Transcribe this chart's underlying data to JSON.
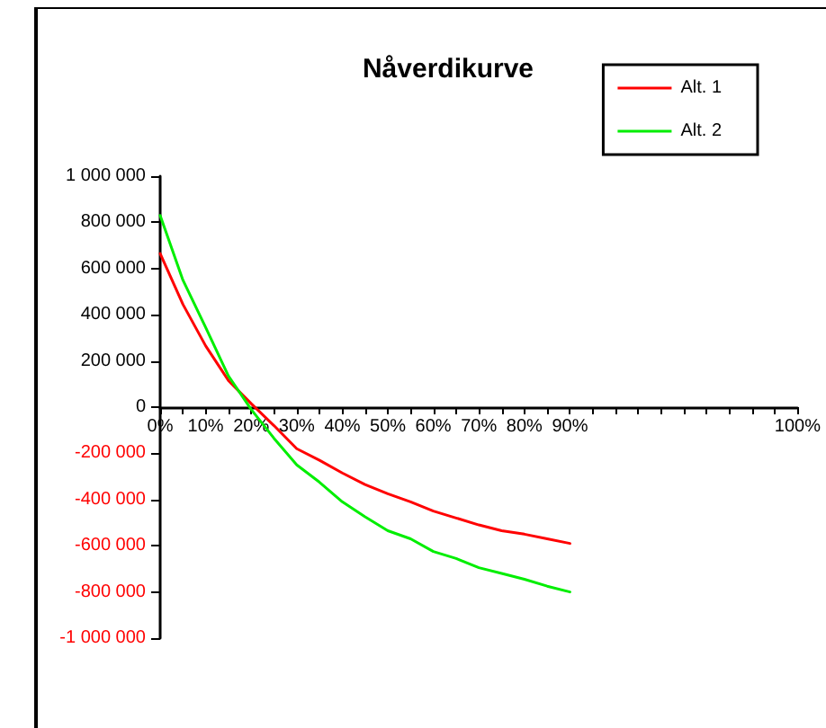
{
  "chart_data": {
    "type": "line",
    "title": "Nåverdikurve",
    "categories": [
      "0%",
      null,
      "10%",
      null,
      "20%",
      null,
      "30%",
      null,
      "40%",
      null,
      "50%",
      null,
      "60%",
      null,
      "70%",
      null,
      "80%",
      null,
      "90%",
      null,
      null,
      null,
      null,
      null,
      null,
      null,
      null,
      null,
      "100%"
    ],
    "series": [
      {
        "name": "Alt. 1",
        "color": "#ff0000",
        "values": [
          665000,
          445000,
          265000,
          115000,
          15000,
          -80000,
          -180000,
          -230000,
          -285000,
          -335000,
          -375000,
          -410000,
          -450000,
          -480000,
          -510000,
          -535000,
          -550000,
          -570000,
          -590000,
          null,
          null,
          null,
          null,
          null,
          null,
          null,
          null,
          null,
          null
        ]
      },
      {
        "name": "Alt. 2",
        "color": "#00ee00",
        "values": [
          830000,
          550000,
          345000,
          135000,
          -10000,
          -135000,
          -250000,
          -325000,
          -410000,
          -475000,
          -535000,
          -570000,
          -625000,
          -655000,
          -695000,
          -720000,
          -745000,
          -775000,
          -800000,
          null,
          null,
          null,
          null,
          null,
          null,
          null,
          null,
          null,
          null
        ]
      }
    ],
    "ylim": [
      -1000000,
      1000000
    ],
    "yticks": [
      {
        "value": -1000000,
        "label": "-1 000 000"
      },
      {
        "value": -800000,
        "label": "-800 000"
      },
      {
        "value": -600000,
        "label": "-600 000"
      },
      {
        "value": -400000,
        "label": "-400 000"
      },
      {
        "value": -200000,
        "label": "-200 000"
      },
      0,
      {
        "value": 200000,
        "label": "200 000"
      },
      {
        "value": 400000,
        "label": "400 000"
      },
      {
        "value": 600000,
        "label": "600 000"
      },
      {
        "value": 800000,
        "label": "800 000"
      },
      {
        "value": 1000000,
        "label": "1 000 000"
      }
    ],
    "legend": "top right",
    "marker": "none",
    "line_style": "solid"
  }
}
